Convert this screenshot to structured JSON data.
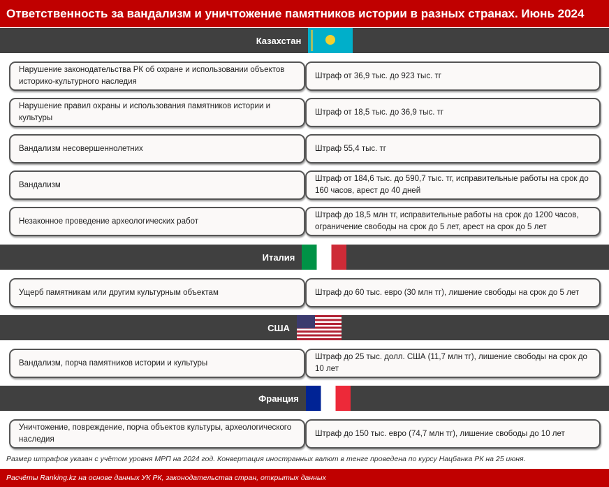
{
  "title": "Ответственность за вандализм и уничтожение памятников истории в разных странах. Июнь 2024",
  "sections": [
    {
      "country": "Казахстан",
      "flag": "kazakhstan-flag-icon",
      "rows": [
        {
          "offense": "Нарушение законодательства РК об охране и использовании объектов историко-культурного наследия",
          "penalty": "Штраф от 36,9 тыс. до 923 тыс. тг"
        },
        {
          "offense": "Нарушение правил охраны и использования памятников истории и культуры",
          "penalty": "Штраф от 18,5 тыс. до 36,9 тыс. тг"
        },
        {
          "offense": "Вандализм несовершеннолетних",
          "penalty": "Штраф 55,4 тыс. тг"
        },
        {
          "offense": "Вандализм",
          "penalty": "Штраф от 184,6 тыс. до 590,7 тыс. тг, исправительные работы на срок до 160 часов, арест до 40 дней"
        },
        {
          "offense": "Незаконное проведение археологических работ",
          "penalty": "Штраф до 18,5 млн тг, исправительные работы на срок до 1200 часов, ограничение свободы на срок до 5 лет, арест на срок до 5 лет"
        }
      ]
    },
    {
      "country": "Италия",
      "flag": "italy-flag-icon",
      "rows": [
        {
          "offense": "Ущерб памятникам или другим культурным объектам",
          "penalty": "Штраф до 60 тыс. евро (30 млн тг), лишение свободы на срок до 5 лет"
        }
      ]
    },
    {
      "country": "США",
      "flag": "usa-flag-icon",
      "rows": [
        {
          "offense": "Вандализм, порча памятников истории и культуры",
          "penalty": "Штраф до 25 тыс. долл. США (11,7 млн тг), лишение свободы на срок до 10 лет"
        }
      ]
    },
    {
      "country": "Франция",
      "flag": "france-flag-icon",
      "rows": [
        {
          "offense": "Уничтожение, повреждение, порча объектов культуры, археологического наследия",
          "penalty": "Штраф до 150 тыс. евро (74,7 млн тг), лишение свободы до 10 лет"
        }
      ]
    }
  ],
  "note": "Размер штрафов указан с учётом уровня МРП на 2024 год. Конвертация иностранных валют в тенге проведена по курсу Нацбанка РК на 25 июня.",
  "footer": "Расчёты Ranking.kz на основе данных УК РК, законодательства стран, открытых данных",
  "colors": {
    "brand_red": "#c00000",
    "section_bg": "#404040"
  }
}
